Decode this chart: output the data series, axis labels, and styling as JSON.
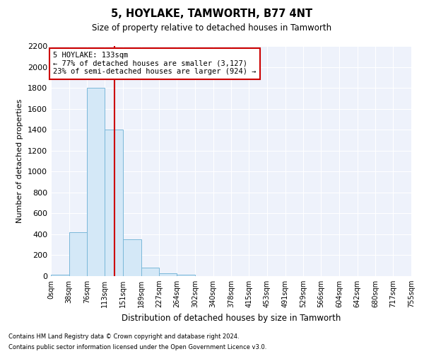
{
  "title": "5, HOYLAKE, TAMWORTH, B77 4NT",
  "subtitle": "Size of property relative to detached houses in Tamworth",
  "xlabel": "Distribution of detached houses by size in Tamworth",
  "ylabel": "Number of detached properties",
  "bar_color": "#d4e8f7",
  "bar_edge_color": "#7ab8d9",
  "background_color": "#eef2fb",
  "grid_color": "#ffffff",
  "vline_x": 133,
  "vline_color": "#cc0000",
  "annotation_text": "5 HOYLAKE: 133sqm\n← 77% of detached houses are smaller (3,127)\n23% of semi-detached houses are larger (924) →",
  "annotation_box_color": "#ffffff",
  "annotation_box_edge": "#cc0000",
  "bin_edges": [
    0,
    38,
    76,
    113,
    151,
    189,
    227,
    264,
    302,
    340,
    378,
    415,
    453,
    491,
    529,
    566,
    604,
    642,
    680,
    717,
    755
  ],
  "bin_counts": [
    15,
    420,
    1800,
    1400,
    350,
    80,
    30,
    15,
    0,
    0,
    0,
    0,
    0,
    0,
    0,
    0,
    0,
    0,
    0,
    0
  ],
  "ylim": [
    0,
    2200
  ],
  "yticks": [
    0,
    200,
    400,
    600,
    800,
    1000,
    1200,
    1400,
    1600,
    1800,
    2000,
    2200
  ],
  "footer_line1": "Contains HM Land Registry data © Crown copyright and database right 2024.",
  "footer_line2": "Contains public sector information licensed under the Open Government Licence v3.0."
}
